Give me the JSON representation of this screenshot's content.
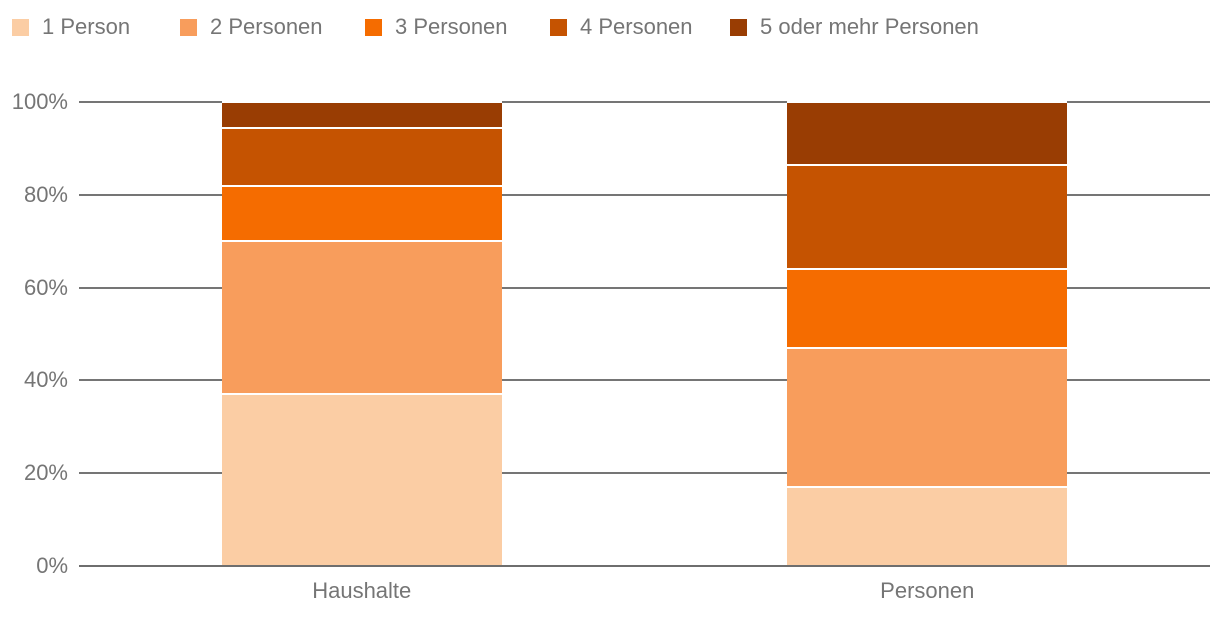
{
  "chart_data": {
    "type": "bar",
    "variant": "stacked-100-percent-column",
    "title": "",
    "xlabel": "",
    "ylabel": "",
    "categories": [
      "Haushalte",
      "Personen"
    ],
    "series": [
      {
        "name": "1 Person",
        "color": "#fbcda4",
        "values": [
          37,
          17
        ]
      },
      {
        "name": "2 Personen",
        "color": "#f89d5c",
        "values": [
          33,
          30
        ]
      },
      {
        "name": "3 Personen",
        "color": "#f56c00",
        "values": [
          12,
          17
        ]
      },
      {
        "name": "4 Personen",
        "color": "#c55301",
        "values": [
          12.5,
          22.5
        ]
      },
      {
        "name": "5 oder mehr Personen",
        "color": "#993d03",
        "values": [
          5.5,
          13.5
        ]
      }
    ],
    "ylim": [
      0,
      100
    ],
    "y_ticks": [
      "0%",
      "20%",
      "40%",
      "60%",
      "80%",
      "100%"
    ],
    "grid": true,
    "legend_position": "top"
  },
  "colors": {
    "grid_line": "#757575",
    "baseline": "#6e6e6e",
    "tick_text": "#757575",
    "legend_text": "#757575",
    "segment_divider": "#ffffff",
    "background": "#ffffff"
  }
}
